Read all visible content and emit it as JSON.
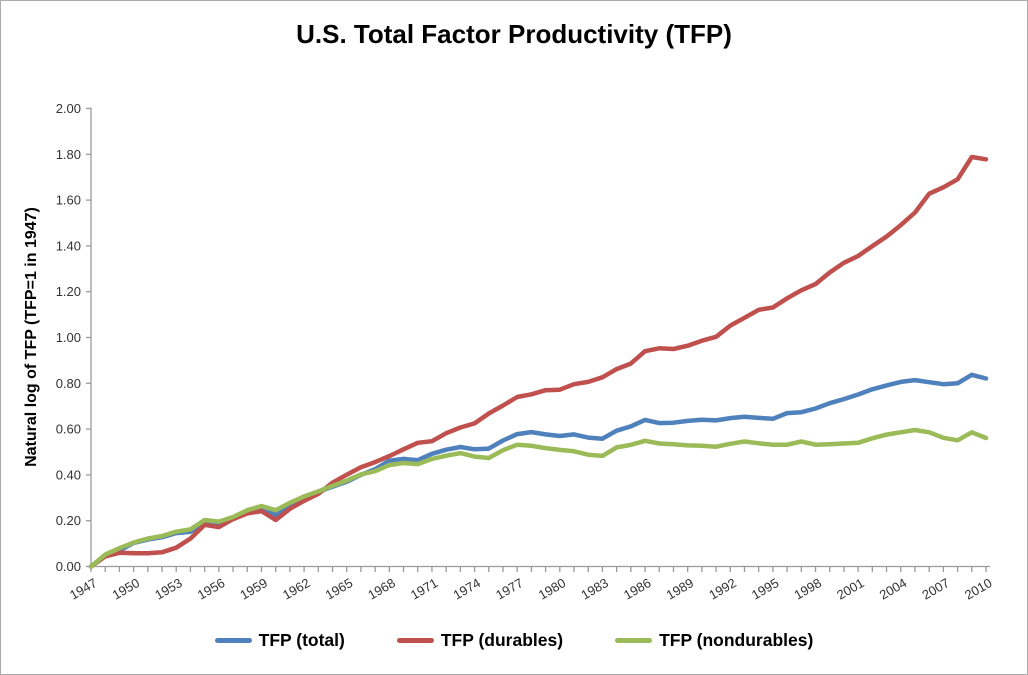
{
  "title": "U.S. Total Factor Productivity (TFP)",
  "y_axis_title": "Natural log of TFP (TFP=1 in 1947)",
  "legend": [
    {
      "label": "TFP (total)",
      "color": "#4F81BD"
    },
    {
      "label": "TFP (durables)",
      "color": "#C0504D"
    },
    {
      "label": "TFP (nondurables)",
      "color": "#9BBB59"
    }
  ],
  "chart_data": {
    "type": "line",
    "title": "U.S. Total Factor Productivity (TFP)",
    "xlabel": "",
    "ylabel": "Natural log of TFP (TFP=1 in 1947)",
    "ylim": [
      0.0,
      2.0
    ],
    "y_tick_step": 0.2,
    "y_tick_labels": [
      "0.00",
      "0.20",
      "0.40",
      "0.60",
      "0.80",
      "1.00",
      "1.20",
      "1.40",
      "1.60",
      "1.80",
      "2.00"
    ],
    "x_tick_labels": [
      1947,
      1950,
      1953,
      1956,
      1959,
      1962,
      1965,
      1968,
      1971,
      1974,
      1977,
      1980,
      1983,
      1986,
      1989,
      1992,
      1995,
      1998,
      2001,
      2004,
      2007,
      2010
    ],
    "grid": false,
    "legend_position": "bottom",
    "x": [
      1947,
      1948,
      1949,
      1950,
      1951,
      1952,
      1953,
      1954,
      1955,
      1956,
      1957,
      1958,
      1959,
      1960,
      1961,
      1962,
      1963,
      1964,
      1965,
      1966,
      1967,
      1968,
      1969,
      1970,
      1971,
      1972,
      1973,
      1974,
      1975,
      1976,
      1977,
      1978,
      1979,
      1980,
      1981,
      1982,
      1983,
      1984,
      1985,
      1986,
      1987,
      1988,
      1989,
      1990,
      1991,
      1992,
      1993,
      1994,
      1995,
      1996,
      1997,
      1998,
      1999,
      2000,
      2001,
      2002,
      2003,
      2004,
      2005,
      2006,
      2007,
      2008,
      2009,
      2010
    ],
    "series": [
      {
        "name": "TFP (total)",
        "color": "#4F81BD",
        "values": [
          0.0,
          0.048,
          0.07,
          0.103,
          0.118,
          0.128,
          0.146,
          0.152,
          0.192,
          0.185,
          0.207,
          0.237,
          0.258,
          0.225,
          0.272,
          0.302,
          0.326,
          0.348,
          0.37,
          0.4,
          0.425,
          0.462,
          0.47,
          0.464,
          0.492,
          0.51,
          0.522,
          0.512,
          0.515,
          0.55,
          0.578,
          0.587,
          0.577,
          0.57,
          0.577,
          0.563,
          0.558,
          0.593,
          0.612,
          0.64,
          0.626,
          0.628,
          0.636,
          0.641,
          0.638,
          0.648,
          0.654,
          0.649,
          0.645,
          0.67,
          0.674,
          0.69,
          0.713,
          0.731,
          0.751,
          0.774,
          0.791,
          0.806,
          0.814,
          0.805,
          0.796,
          0.8,
          0.837,
          0.821
        ]
      },
      {
        "name": "TFP (durables)",
        "color": "#C0504D",
        "values": [
          0.0,
          0.044,
          0.06,
          0.058,
          0.058,
          0.062,
          0.082,
          0.122,
          0.182,
          0.172,
          0.207,
          0.232,
          0.242,
          0.203,
          0.252,
          0.287,
          0.317,
          0.366,
          0.401,
          0.433,
          0.456,
          0.482,
          0.512,
          0.54,
          0.547,
          0.582,
          0.607,
          0.625,
          0.668,
          0.703,
          0.74,
          0.752,
          0.77,
          0.772,
          0.796,
          0.806,
          0.826,
          0.862,
          0.886,
          0.94,
          0.953,
          0.95,
          0.964,
          0.986,
          1.003,
          1.052,
          1.086,
          1.121,
          1.131,
          1.171,
          1.206,
          1.233,
          1.284,
          1.326,
          1.356,
          1.399,
          1.441,
          1.491,
          1.546,
          1.628,
          1.656,
          1.691,
          1.788,
          1.778
        ]
      },
      {
        "name": "TFP (nondurables)",
        "color": "#9BBB59",
        "values": [
          0.0,
          0.052,
          0.08,
          0.105,
          0.122,
          0.133,
          0.152,
          0.162,
          0.203,
          0.196,
          0.216,
          0.246,
          0.264,
          0.246,
          0.278,
          0.306,
          0.328,
          0.352,
          0.375,
          0.402,
          0.416,
          0.443,
          0.452,
          0.447,
          0.47,
          0.484,
          0.495,
          0.48,
          0.474,
          0.508,
          0.532,
          0.527,
          0.517,
          0.509,
          0.503,
          0.488,
          0.483,
          0.52,
          0.531,
          0.549,
          0.537,
          0.534,
          0.529,
          0.527,
          0.523,
          0.536,
          0.546,
          0.538,
          0.532,
          0.532,
          0.546,
          0.532,
          0.534,
          0.537,
          0.54,
          0.56,
          0.576,
          0.586,
          0.596,
          0.586,
          0.562,
          0.551,
          0.586,
          0.561
        ]
      }
    ]
  }
}
